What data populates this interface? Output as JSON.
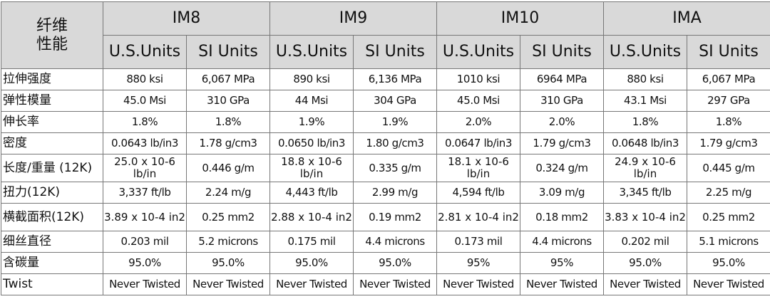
{
  "table": {
    "corner": [
      "纤维",
      "性能"
    ],
    "groups": [
      "IM8",
      "IM9",
      "IM10",
      "IMA"
    ],
    "units": [
      "U.S.Units",
      "SI Units",
      "U.S.Units",
      "SI Units",
      "U.S.Units",
      "SI Units",
      "U.S.Units",
      "SI Units"
    ],
    "rows": [
      [
        "拉伸强度",
        "880 ksi",
        "6,067 MPa",
        "890 ksi",
        "6,136 MPa",
        "1010 ksi",
        "6964 MPa",
        "880 ksi",
        "6,067 MPa"
      ],
      [
        "弹性模量",
        "45.0 Msi",
        "310 GPa",
        "44 Msi",
        "304 GPa",
        "45.0 Msi",
        "310 GPa",
        "43.1 Msi",
        "297 GPa"
      ],
      [
        "伸长率",
        "1.8%",
        "1.8%",
        "1.9%",
        "1.9%",
        "2.0%",
        "2.0%",
        "1.8%",
        "1.8%"
      ],
      [
        "密度",
        "0.0643 lb/in3",
        "1.78 g/cm3",
        "0.0650 lb/in3",
        "1.80 g/cm3",
        "0.0647 lb/in3",
        "1.79 g/cm3",
        "0.0648 lb/in3",
        "1.79 g/cm3"
      ],
      [
        "长度/重量 (12K)",
        "25.0 x 10-6 lb/in",
        "0.446 g/m",
        "18.8 x 10-6 lb/in",
        "0.335 g/m",
        "18.1 x 10-6 lb/in",
        "0.324 g/m",
        "24.9 x 10-6 lb/in",
        "0.445 g/m"
      ],
      [
        "扭力(12K)",
        "3,337 ft/lb",
        "2.24 m/g",
        "4,443 ft/lb",
        "2.99 m/g",
        "4,594 ft/lb",
        "3.09 m/g",
        "3,345 ft/lb",
        "2.25 m/g"
      ],
      [
        "横截面积(12K)",
        "3.89 x 10-4 in2",
        "0.25 mm2",
        "2.88 x 10-4 in2",
        "0.19 mm2",
        "2.81 x 10-4 in2",
        "0.18 mm2",
        "3.83 x 10-4 in2",
        "0.25 mm2"
      ],
      [
        "细丝直径",
        "0.203 mil",
        "5.2 microns",
        "0.175 mil",
        "4.4 microns",
        "0.173 mil",
        "4.4 microns",
        "0.202 mil",
        "5.1 microns"
      ],
      [
        "含碳量",
        "95.0%",
        "95.0%",
        "95.0%",
        "95.0%",
        "95%",
        "95%",
        "95.0%",
        "95.0%"
      ],
      [
        "Twist",
        "Never Twisted",
        "Never Twisted",
        "Never Twisted",
        "Never Twisted",
        "Never Twisted",
        "Never Twisted",
        "Never Twisted",
        "Never Twisted"
      ]
    ]
  }
}
